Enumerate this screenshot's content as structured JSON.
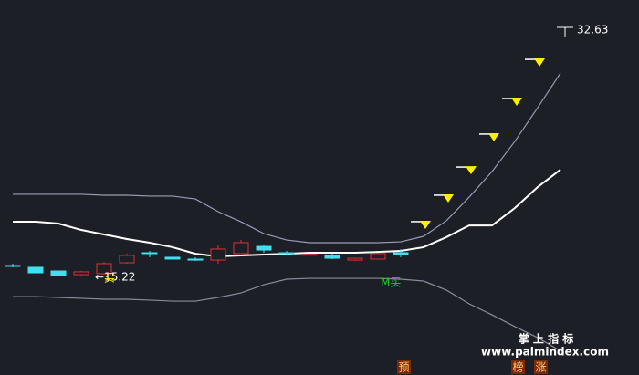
{
  "chart_data": {
    "type": "candlestick",
    "ylim": [
      8.26,
      34.76
    ],
    "up_color": "#e03030",
    "down_color": "#40e0f0",
    "candles": [
      {
        "open": 16.0,
        "high": 16.13,
        "low": 15.87,
        "close": 16.0
      },
      {
        "open": 15.87,
        "high": 15.87,
        "low": 15.48,
        "close": 15.48
      },
      {
        "open": 15.61,
        "high": 15.61,
        "low": 15.29,
        "close": 15.29
      },
      {
        "open": 15.35,
        "high": 15.61,
        "low": 15.22,
        "close": 15.55
      },
      {
        "open": 15.42,
        "high": 16.25,
        "low": 15.35,
        "close": 16.13
      },
      {
        "open": 16.19,
        "high": 16.84,
        "low": 16.13,
        "close": 16.71
      },
      {
        "open": 16.9,
        "high": 17.03,
        "low": 16.58,
        "close": 16.84
      },
      {
        "open": 16.58,
        "high": 16.58,
        "low": 16.45,
        "close": 16.45
      },
      {
        "open": 16.45,
        "high": 16.58,
        "low": 16.32,
        "close": 16.38
      },
      {
        "open": 16.38,
        "high": 17.48,
        "low": 16.13,
        "close": 17.16
      },
      {
        "open": 16.84,
        "high": 17.8,
        "low": 16.84,
        "close": 17.61
      },
      {
        "open": 17.35,
        "high": 17.48,
        "low": 16.9,
        "close": 17.09
      },
      {
        "open": 16.9,
        "high": 17.03,
        "low": 16.71,
        "close": 16.84
      },
      {
        "open": 16.74,
        "high": 16.84,
        "low": 16.71,
        "close": 16.79
      },
      {
        "open": 16.71,
        "high": 16.84,
        "low": 16.45,
        "close": 16.51
      },
      {
        "open": 16.38,
        "high": 16.51,
        "low": 16.32,
        "close": 16.51
      },
      {
        "open": 16.45,
        "high": 16.9,
        "low": 16.45,
        "close": 16.84
      },
      {
        "open": 16.9,
        "high": 17.16,
        "low": 16.58,
        "close": 16.77
      }
    ],
    "series": [
      {
        "color": "#9a9ab8",
        "values": [
          21.03,
          21.03,
          21.03,
          21.03,
          20.96,
          20.96,
          20.9,
          20.9,
          20.7,
          19.8,
          19.09,
          18.25,
          17.8,
          17.61,
          17.61,
          17.61,
          17.61,
          17.67,
          18.06,
          19.16,
          20.83,
          22.64,
          24.77,
          27.15,
          29.6
        ]
      },
      {
        "color": "#ffffff",
        "values": [
          19.09,
          19.09,
          18.96,
          18.51,
          18.19,
          17.87,
          17.61,
          17.29,
          16.83,
          16.64,
          16.71,
          16.77,
          16.83,
          16.9,
          16.9,
          16.9,
          16.96,
          17.03,
          17.29,
          18.0,
          18.83,
          18.83,
          20.06,
          21.54,
          22.77
        ]
      },
      {
        "color": "#8a8a9a",
        "values": [
          13.8,
          13.8,
          13.74,
          13.68,
          13.61,
          13.61,
          13.55,
          13.48,
          13.48,
          13.74,
          14.06,
          14.64,
          15.03,
          15.09,
          15.09,
          15.09,
          15.09,
          15.03,
          14.9,
          14.26,
          13.29,
          12.51,
          11.68,
          10.9,
          9.96
        ]
      }
    ],
    "signals": {
      "color": "#ffee00",
      "values": [
        null,
        null,
        null,
        null,
        null,
        null,
        null,
        null,
        null,
        null,
        null,
        null,
        null,
        null,
        null,
        null,
        null,
        null,
        18.58,
        20.45,
        22.44,
        24.77,
        27.28,
        30.05,
        null
      ]
    },
    "high_label": 32.63,
    "low_label": {
      "value": 15.22,
      "label": "←15.22"
    },
    "buy_label": "买",
    "m_buy_label": "M买"
  },
  "badges": [
    "预",
    "榜",
    "涨"
  ],
  "watermark": {
    "title": "掌 上 指 标",
    "url": "www.palmindex.com"
  }
}
